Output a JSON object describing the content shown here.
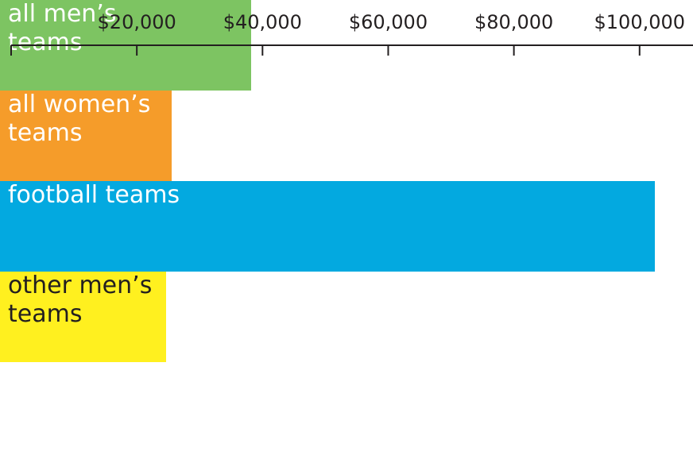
{
  "chart_data": {
    "type": "bar",
    "orientation": "horizontal",
    "categories": [
      "all men’s teams",
      "all women’s teams",
      "football teams",
      "other men’s teams"
    ],
    "values": [
      39700,
      27000,
      104000,
      26200
    ],
    "colors": [
      "#7dc462",
      "#f59c2a",
      "#03a9e0",
      "#fff01f"
    ],
    "label_colors": [
      "#ffffff",
      "#ffffff",
      "#ffffff",
      "#231f20"
    ],
    "xlim": [
      0,
      108500
    ],
    "xticks": [
      {
        "value": 20000,
        "label": "$20,000"
      },
      {
        "value": 40000,
        "label": "$40,000"
      },
      {
        "value": 60000,
        "label": "$60,000"
      },
      {
        "value": 80000,
        "label": "$80,000"
      },
      {
        "value": 100000,
        "label": "$100,000"
      }
    ]
  }
}
